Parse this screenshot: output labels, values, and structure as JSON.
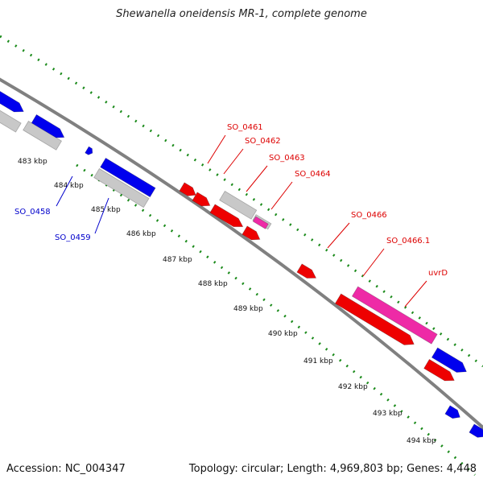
{
  "title": "Shewanella oneidensis MR-1, complete genome",
  "accession": "Accession: NC_004347",
  "summary": "Topology: circular; Length: 4,969,803 bp; Genes: 4,448",
  "colors": {
    "backbone": "#808080",
    "tick": "#1a8a1a",
    "forward_gene": "#0000ee",
    "gray_gene": "#c8c8c8",
    "red_gene": "#ee0000",
    "pink_gene": "#ee2aa6",
    "label_blue": "#0000cc",
    "label_red": "#dd0000"
  },
  "ticks": [
    "483 kbp",
    "484 kbp",
    "485 kbp",
    "486 kbp",
    "487 kbp",
    "488 kbp",
    "489 kbp",
    "490 kbp",
    "491 kbp",
    "492 kbp",
    "493 kbp",
    "494 kbp"
  ],
  "gene_labels": [
    {
      "text": "SO_0458",
      "color": "blue"
    },
    {
      "text": "SO_0459",
      "color": "blue"
    },
    {
      "text": "SO_0461",
      "color": "red"
    },
    {
      "text": "SO_0462",
      "color": "red"
    },
    {
      "text": "SO_0463",
      "color": "red"
    },
    {
      "text": "SO_0464",
      "color": "red"
    },
    {
      "text": "SO_0466",
      "color": "red"
    },
    {
      "text": "SO_0466.1",
      "color": "red"
    },
    {
      "text": "uvrD",
      "color": "red"
    }
  ]
}
